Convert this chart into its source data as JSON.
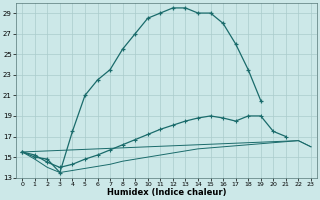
{
  "xlabel": "Humidex (Indice chaleur)",
  "bg_color": "#cce8e8",
  "line_color": "#1a6b6b",
  "grid_color": "#aacccc",
  "main_x": [
    0,
    1,
    2,
    3,
    4,
    5,
    6,
    7,
    8,
    9,
    10,
    11,
    12,
    13,
    14,
    15,
    16,
    17,
    18,
    19
  ],
  "main_y": [
    15.5,
    15.0,
    14.8,
    13.5,
    17.5,
    21.0,
    22.5,
    23.5,
    25.5,
    27.0,
    28.5,
    29.0,
    29.5,
    29.5,
    29.0,
    29.0,
    28.0,
    26.0,
    23.5,
    20.5
  ],
  "line2_x": [
    0,
    1,
    2,
    3,
    4,
    5,
    6,
    7,
    8,
    9,
    10,
    11,
    12,
    13,
    14,
    15,
    16,
    17,
    18,
    19,
    20,
    21
  ],
  "line2_y": [
    15.5,
    15.2,
    14.5,
    14.0,
    14.3,
    14.8,
    15.2,
    15.7,
    16.2,
    16.7,
    17.2,
    17.7,
    18.1,
    18.5,
    18.8,
    19.0,
    18.8,
    18.5,
    19.0,
    19.0,
    17.5,
    17.0
  ],
  "line3_x": [
    0,
    1,
    2,
    3,
    4,
    5,
    6,
    7,
    8,
    9,
    10,
    11,
    12,
    13,
    14,
    15,
    16,
    17,
    18,
    19,
    20,
    21,
    22,
    23
  ],
  "line3_y": [
    15.5,
    14.8,
    14.0,
    13.5,
    13.7,
    13.9,
    14.1,
    14.3,
    14.6,
    14.8,
    15.0,
    15.2,
    15.4,
    15.6,
    15.8,
    15.9,
    16.0,
    16.1,
    16.2,
    16.3,
    16.4,
    16.5,
    16.6,
    16.0
  ],
  "line4_x": [
    0,
    22,
    23
  ],
  "line4_y": [
    15.5,
    16.6,
    16.0
  ],
  "ylim": [
    13,
    30
  ],
  "xlim": [
    -0.5,
    23.5
  ],
  "yticks": [
    13,
    15,
    17,
    19,
    21,
    23,
    25,
    27,
    29
  ],
  "xticks": [
    0,
    1,
    2,
    3,
    4,
    5,
    6,
    7,
    8,
    9,
    10,
    11,
    12,
    13,
    14,
    15,
    16,
    17,
    18,
    19,
    20,
    21,
    22,
    23
  ]
}
